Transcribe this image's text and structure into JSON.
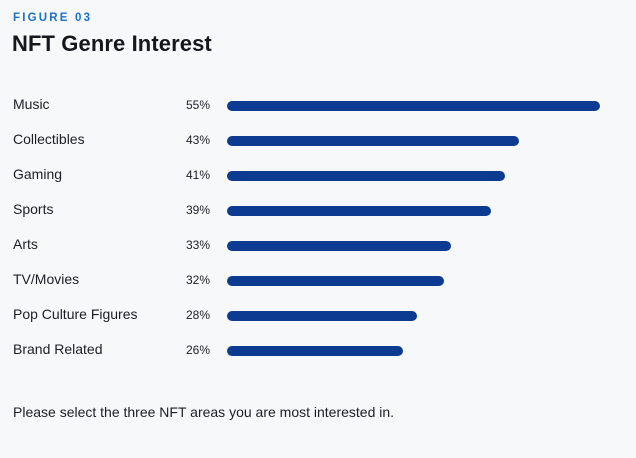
{
  "header": {
    "eyebrow": "FIGURE 03",
    "title": "NFT Genre Interest"
  },
  "footnote": "Please select the three NFT areas you are most interested in.",
  "colors": {
    "bar": "#0d3b91",
    "eyebrow": "#1d6fc9",
    "background": "#f7f8fa"
  },
  "chart_data": {
    "type": "bar",
    "orientation": "horizontal",
    "title": "NFT Genre Interest",
    "categories": [
      "Music",
      "Collectibles",
      "Gaming",
      "Sports",
      "Arts",
      "TV/Movies",
      "Pop Culture Figures",
      "Brand Related"
    ],
    "values": [
      55,
      43,
      41,
      39,
      33,
      32,
      28,
      26
    ],
    "value_labels": [
      "55%",
      "43%",
      "41%",
      "39%",
      "33%",
      "32%",
      "28%",
      "26%"
    ],
    "unit": "%",
    "xlim": [
      0,
      55
    ],
    "grid": false,
    "legend": "none"
  }
}
